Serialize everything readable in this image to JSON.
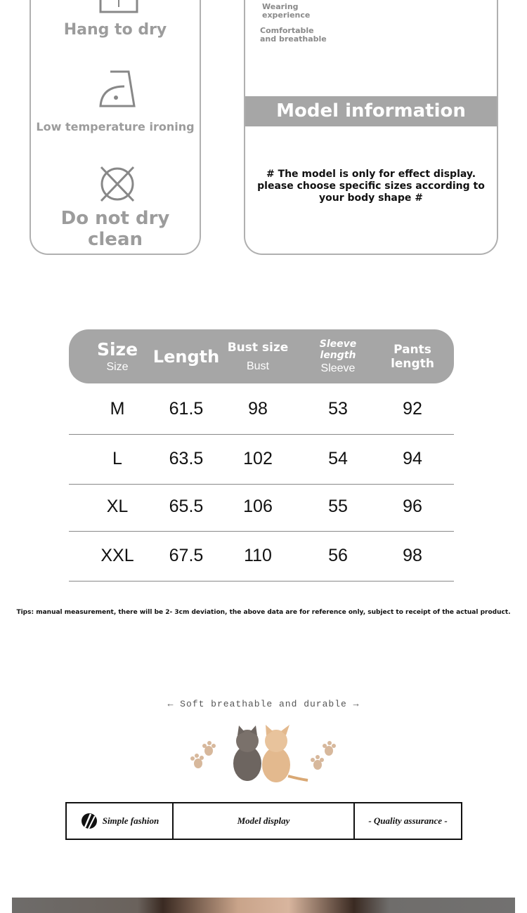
{
  "care": {
    "items": [
      {
        "icon": "hang-dry-icon",
        "label": "Hang to dry"
      },
      {
        "icon": "low-temp-iron-icon",
        "label": "Low temperature ironing"
      },
      {
        "icon": "do-not-dry-clean-icon",
        "label": "Do not dry clean"
      }
    ]
  },
  "info": {
    "notes": [
      "Wearing experience",
      "Comfortable and breathable"
    ],
    "banner": "Model information",
    "disclaimer": "# The model is only for effect display. please choose specific sizes according to your body shape #"
  },
  "size_table": {
    "headers": [
      {
        "main": "Size",
        "sub": "Size"
      },
      {
        "main": "Length",
        "sub": ""
      },
      {
        "main": "Bust size",
        "sub": "Bust"
      },
      {
        "main": "Sleeve length",
        "sub": "Sleeve"
      },
      {
        "main": "Pants length",
        "sub": ""
      }
    ],
    "rows": [
      [
        "M",
        "61.5",
        "98",
        "53",
        "92"
      ],
      [
        "L",
        "63.5",
        "102",
        "54",
        "94"
      ],
      [
        "XL",
        "65.5",
        "106",
        "55",
        "96"
      ],
      [
        "XXL",
        "67.5",
        "110",
        "56",
        "98"
      ]
    ],
    "header_color": "#a6a6a6"
  },
  "tips": "Tips: manual measurement, there will be 2- 3cm deviation, the above data are for reference only, subject to receipt of the actual product.",
  "tagline": "← Soft breathable and durable →",
  "strip": {
    "items": [
      "Simple fashion",
      "Model display",
      "- Quality assurance -"
    ]
  }
}
